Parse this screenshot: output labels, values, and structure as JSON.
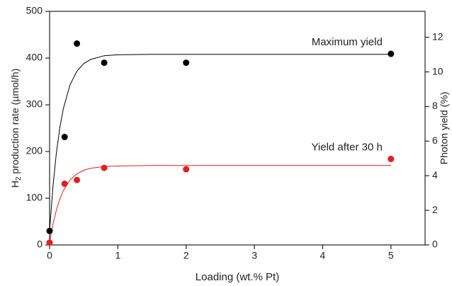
{
  "chart_data": {
    "type": "scatter",
    "xlabel": "Loading (wt.% Pt)",
    "ylabel": {
      "main": "H",
      "sub": "2",
      "rest": " production rate (µmol/h)"
    },
    "y2label": "Photon yield (%)",
    "xlim": [
      0,
      5.5
    ],
    "xticks": [
      0,
      1,
      2,
      3,
      4,
      5
    ],
    "ylim": [
      0,
      500
    ],
    "yticks": [
      0,
      100,
      200,
      300,
      400,
      500
    ],
    "y2lim": [
      0,
      13.5
    ],
    "y2ticks": [
      0,
      2,
      4,
      6,
      8,
      10,
      12
    ],
    "x": [
      0,
      0.22,
      0.4,
      0.8,
      2,
      5
    ],
    "series": [
      {
        "name": "Maximum yield",
        "color": "#000000",
        "values": [
          30,
          231,
          431,
          390,
          390,
          409
        ]
      },
      {
        "name": "Yield after 30 h",
        "color": "#e02020",
        "values": [
          5,
          131,
          139,
          165,
          162,
          184
        ]
      }
    ],
    "fits": [
      {
        "color": "#000000",
        "x": [
          0,
          0.05,
          0.1,
          0.15,
          0.2,
          0.3,
          0.4,
          0.5,
          0.6,
          0.8,
          1,
          1.5,
          2,
          3,
          4,
          5
        ],
        "values": [
          30,
          126,
          198,
          251,
          291,
          343,
          372,
          388,
          397,
          405,
          407,
          408,
          408,
          408,
          408,
          408
        ]
      },
      {
        "color": "#e02020",
        "x": [
          0,
          0.05,
          0.1,
          0.15,
          0.2,
          0.3,
          0.4,
          0.5,
          0.6,
          0.8,
          1,
          1.5,
          2,
          3,
          4,
          5
        ],
        "values": [
          5,
          45,
          75,
          98,
          116,
          139,
          152,
          160,
          164,
          168,
          169,
          170,
          170,
          170,
          170,
          170
        ]
      }
    ]
  }
}
